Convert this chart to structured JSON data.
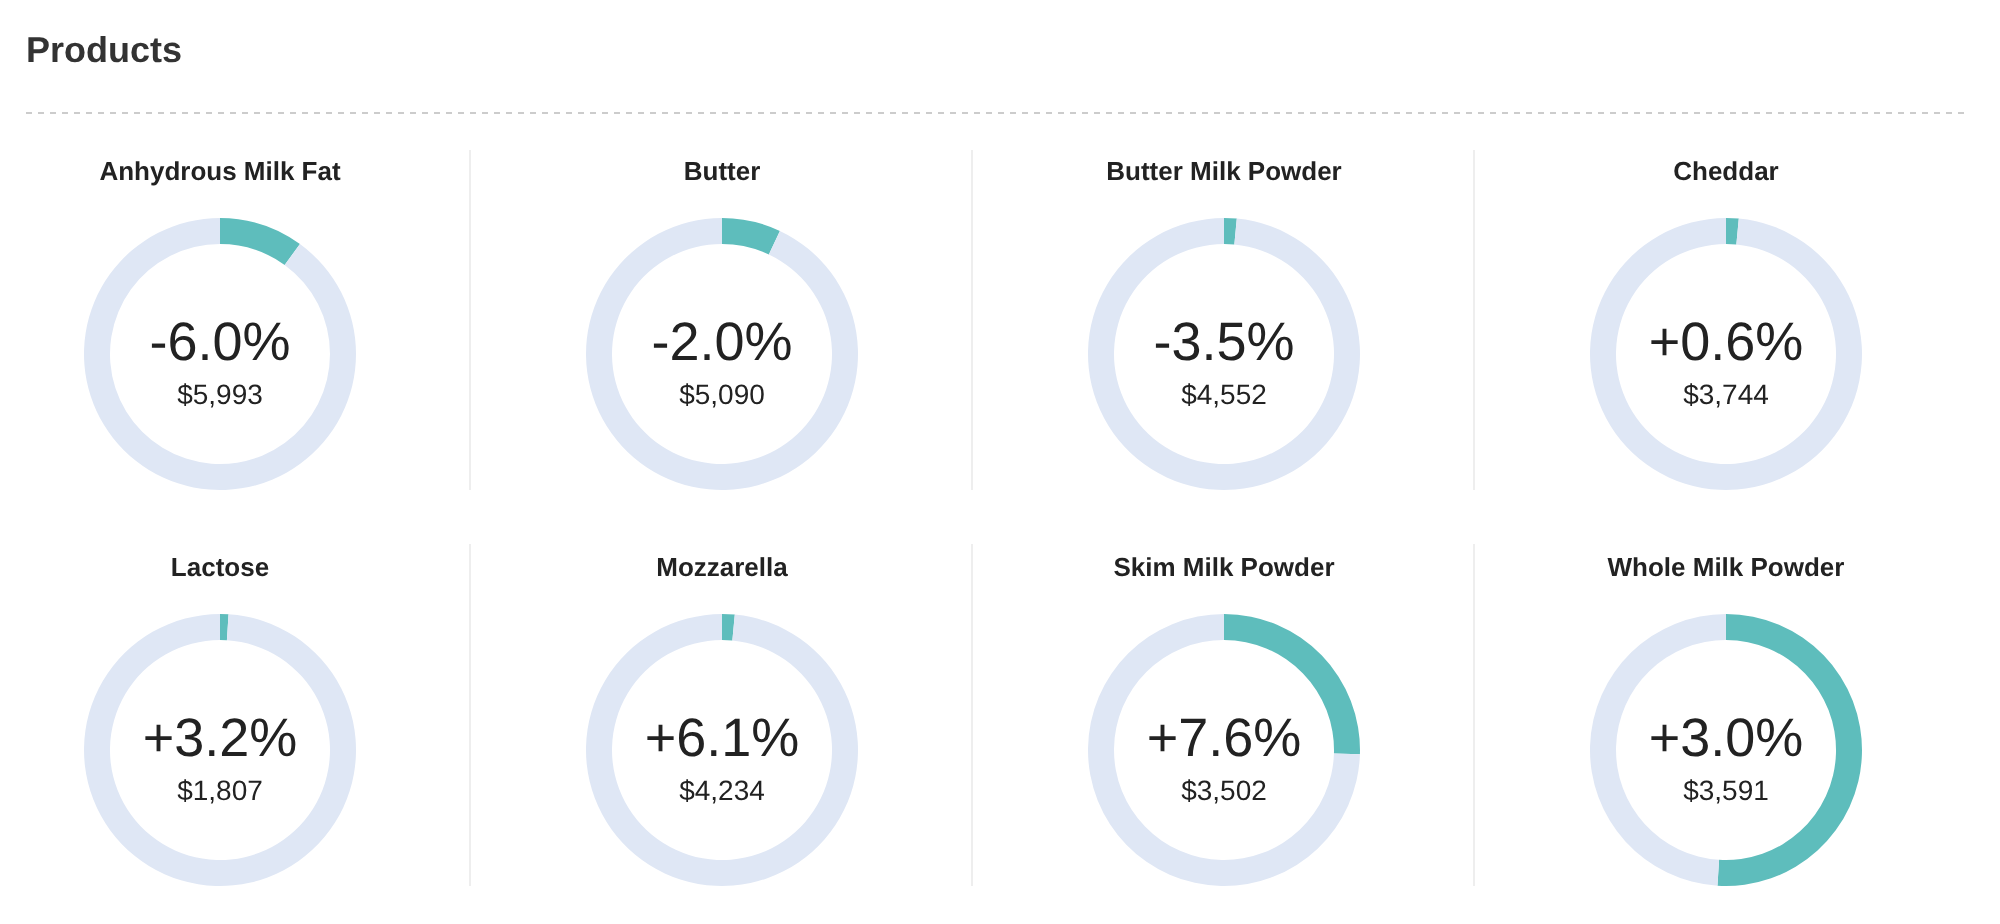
{
  "chart_data": [
    {
      "type": "other",
      "title": "Products"
    },
    {
      "type": "donut",
      "title": "Anhydrous Milk Fat",
      "categories": [
        null,
        null
      ],
      "values": [
        10,
        90
      ],
      "colors": [
        "#5ebdbc",
        "#dfe7f5"
      ],
      "annotations": [
        "-6.0%",
        "$5,993"
      ]
    },
    {
      "type": "donut",
      "title": "Butter",
      "categories": [
        null,
        null
      ],
      "values": [
        7,
        93
      ],
      "colors": [
        "#5ebdbc",
        "#dfe7f5"
      ],
      "annotations": [
        "-2.0%",
        "$5,090"
      ]
    },
    {
      "type": "donut",
      "title": "Butter Milk Powder",
      "categories": [
        null,
        null
      ],
      "values": [
        1.5,
        98.5
      ],
      "colors": [
        "#5ebdbc",
        "#dfe7f5"
      ],
      "annotations": [
        "-3.5%",
        "$4,552"
      ]
    },
    {
      "type": "donut",
      "title": "Cheddar",
      "categories": [
        null,
        null
      ],
      "values": [
        1.5,
        98.5
      ],
      "colors": [
        "#5ebdbc",
        "#dfe7f5"
      ],
      "annotations": [
        "+0.6%",
        "$3,744"
      ]
    },
    {
      "type": "donut",
      "title": "Lactose",
      "categories": [
        null,
        null
      ],
      "values": [
        1,
        99
      ],
      "colors": [
        "#5ebdbc",
        "#dfe7f5"
      ],
      "annotations": [
        "+3.2%",
        "$1,807"
      ]
    },
    {
      "type": "donut",
      "title": "Mozzarella",
      "categories": [
        null,
        null
      ],
      "values": [
        1.5,
        98.5
      ],
      "colors": [
        "#5ebdbc",
        "#dfe7f5"
      ],
      "annotations": [
        "+6.1%",
        "$4,234"
      ]
    },
    {
      "type": "donut",
      "title": "Skim Milk Powder",
      "categories": [
        null,
        null
      ],
      "values": [
        25.5,
        74.5
      ],
      "colors": [
        "#5ebdbc",
        "#dfe7f5"
      ],
      "annotations": [
        "+7.6%",
        "$3,502"
      ]
    },
    {
      "type": "donut",
      "title": "Whole Milk Powder",
      "categories": [
        null,
        null
      ],
      "values": [
        51,
        49
      ],
      "colors": [
        "#5ebdbc",
        "#dfe7f5"
      ],
      "annotations": [
        "+3.0%",
        "$3,591"
      ]
    }
  ]
}
